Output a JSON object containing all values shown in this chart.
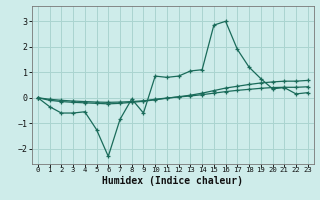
{
  "xlabel": "Humidex (Indice chaleur)",
  "background_color": "#ceecea",
  "grid_color": "#aad4d0",
  "line_color": "#1a6b5a",
  "xlim": [
    -0.5,
    23.5
  ],
  "ylim": [
    -2.6,
    3.6
  ],
  "yticks": [
    -2,
    -1,
    0,
    1,
    2,
    3
  ],
  "xticks": [
    0,
    1,
    2,
    3,
    4,
    5,
    6,
    7,
    8,
    9,
    10,
    11,
    12,
    13,
    14,
    15,
    16,
    17,
    18,
    19,
    20,
    21,
    22,
    23
  ],
  "x": [
    0,
    1,
    2,
    3,
    4,
    5,
    6,
    7,
    8,
    9,
    10,
    11,
    12,
    13,
    14,
    15,
    16,
    17,
    18,
    19,
    20,
    21,
    22,
    23
  ],
  "line1": [
    0.0,
    -0.35,
    -0.6,
    -0.6,
    -0.55,
    -1.25,
    -2.3,
    -0.85,
    -0.05,
    -0.6,
    0.85,
    0.8,
    0.85,
    1.05,
    1.1,
    2.85,
    3.0,
    1.9,
    1.2,
    0.75,
    0.35,
    0.4,
    0.15,
    0.2
  ],
  "line2": [
    0.0,
    -0.1,
    -0.15,
    -0.18,
    -0.2,
    -0.22,
    -0.24,
    -0.22,
    -0.18,
    -0.14,
    -0.08,
    -0.02,
    0.04,
    0.1,
    0.18,
    0.28,
    0.38,
    0.45,
    0.52,
    0.58,
    0.62,
    0.65,
    0.65,
    0.68
  ],
  "line3": [
    0.0,
    -0.06,
    -0.1,
    -0.13,
    -0.15,
    -0.17,
    -0.18,
    -0.17,
    -0.15,
    -0.12,
    -0.06,
    -0.01,
    0.03,
    0.07,
    0.12,
    0.18,
    0.24,
    0.29,
    0.33,
    0.37,
    0.4,
    0.41,
    0.41,
    0.43
  ]
}
